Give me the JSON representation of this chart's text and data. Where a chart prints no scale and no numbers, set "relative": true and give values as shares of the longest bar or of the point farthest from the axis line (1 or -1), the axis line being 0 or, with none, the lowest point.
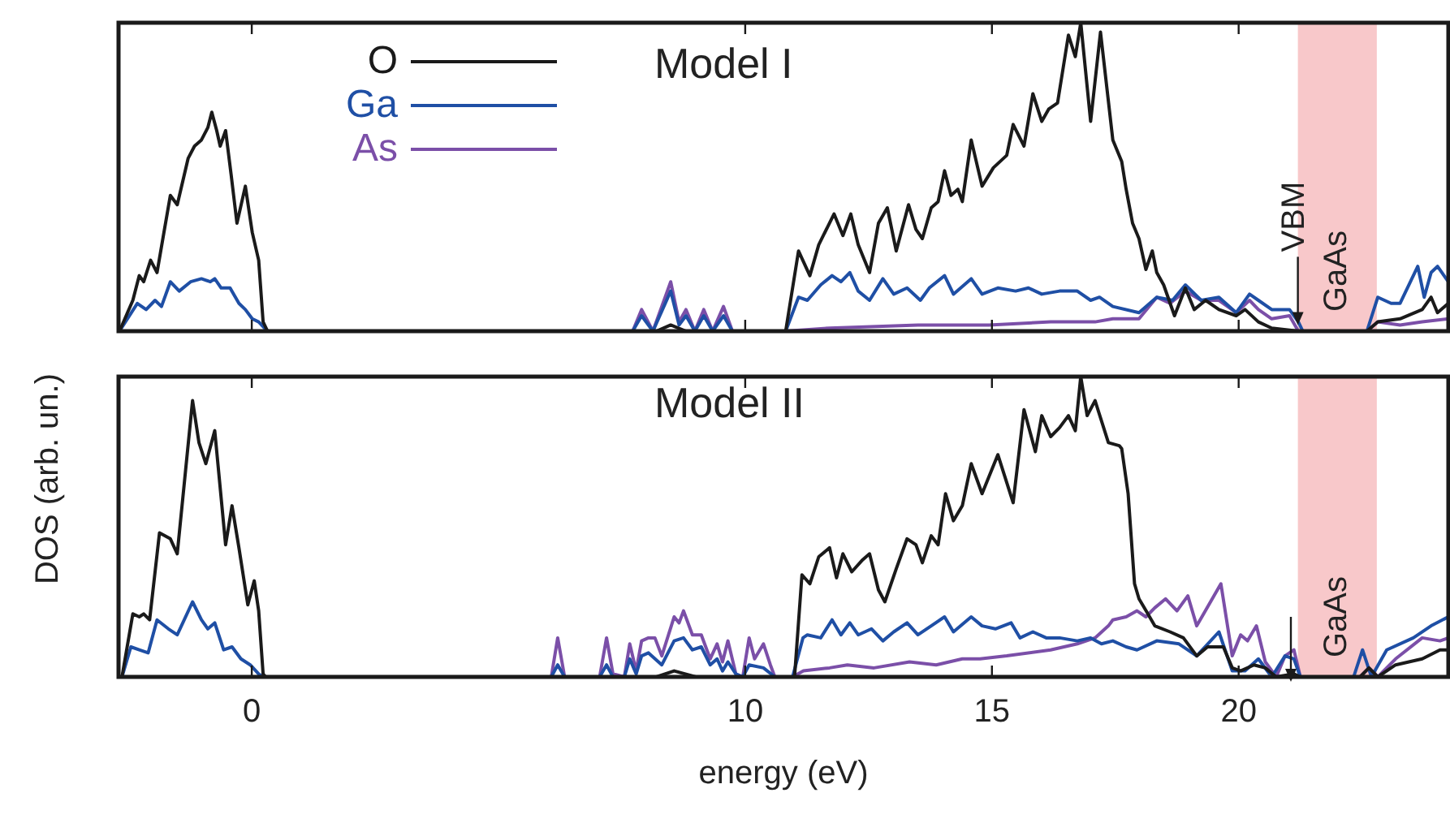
{
  "chart_data": [
    {
      "type": "line",
      "title": "Model I",
      "relative": true,
      "xlim": [
        -2.7,
        24.25
      ],
      "xticks": [
        0,
        10,
        15,
        20
      ],
      "tick_labels": false,
      "legend": "top left",
      "bands": [
        {
          "axis": "x",
          "from": 21.2,
          "to": 22.8,
          "label": "GaAs",
          "color": "#f8c8ca"
        }
      ],
      "annotations": [
        {
          "text": "VBM",
          "x": 21.2,
          "y": 0.02
        }
      ],
      "series": [
        {
          "name": "O",
          "color": "#1a1a1a",
          "x": [
            -2.68,
            -2.41,
            -2.28,
            -2.19,
            -2.05,
            -1.92,
            -1.78,
            -1.65,
            -1.51,
            -1.29,
            -1.16,
            -1.02,
            -0.89,
            -0.81,
            -0.71,
            -0.64,
            -0.53,
            -0.42,
            -0.3,
            -0.13,
            0.01,
            0.14,
            0.23,
            0.32,
            8.2,
            8.49,
            8.8,
            10.82,
            11.08,
            11.31,
            11.49,
            11.8,
            11.98,
            12.14,
            12.29,
            12.52,
            12.7,
            12.88,
            13.06,
            13.31,
            13.46,
            13.59,
            13.77,
            13.91,
            14.04,
            14.17,
            14.31,
            14.4,
            14.58,
            14.8,
            15.03,
            15.3,
            15.43,
            15.65,
            15.83,
            16.01,
            16.15,
            16.33,
            16.55,
            16.69,
            16.8,
            17,
            17.2,
            17.45,
            17.63,
            17.72,
            17.85,
            17.98,
            18.12,
            18.25,
            18.34,
            18.48,
            18.7,
            18.92,
            19.1,
            19.33,
            19.6,
            19.95,
            20.13,
            20.4,
            20.67,
            21.21,
            22.6,
            22.82,
            23.27,
            23.72,
            23.9,
            24.03,
            24.25
          ],
          "values": [
            0,
            0.1,
            0.18,
            0.16,
            0.23,
            0.19,
            0.32,
            0.44,
            0.41,
            0.56,
            0.6,
            0.62,
            0.66,
            0.71,
            0.65,
            0.6,
            0.65,
            0.51,
            0.35,
            0.47,
            0.32,
            0.23,
            0.03,
            0,
            0,
            0.02,
            0,
            0,
            0.26,
            0.18,
            0.28,
            0.38,
            0.31,
            0.38,
            0.28,
            0.19,
            0.35,
            0.4,
            0.26,
            0.41,
            0.33,
            0.3,
            0.4,
            0.42,
            0.52,
            0.44,
            0.46,
            0.42,
            0.62,
            0.47,
            0.53,
            0.57,
            0.67,
            0.6,
            0.77,
            0.68,
            0.72,
            0.74,
            0.96,
            0.89,
            1,
            0.68,
            0.97,
            0.62,
            0.55,
            0.46,
            0.35,
            0.3,
            0.2,
            0.26,
            0.19,
            0.15,
            0.05,
            0.14,
            0.07,
            0.1,
            0.07,
            0.05,
            0.07,
            0.03,
            0.01,
            0,
            0,
            0.03,
            0.04,
            0.07,
            0.11,
            0.06,
            0.09
          ]
        },
        {
          "name": "Ga",
          "color": "#1f4fa5",
          "x": [
            -2.68,
            -2.32,
            -2.14,
            -1.96,
            -1.83,
            -1.65,
            -1.47,
            -1.24,
            -1.02,
            -0.84,
            -0.75,
            -0.62,
            -0.44,
            -0.26,
            -0.13,
            0.01,
            0.14,
            0.32,
            7.72,
            7.9,
            8.13,
            8.49,
            8.66,
            8.8,
            8.98,
            9.16,
            9.34,
            9.56,
            9.74,
            10.82,
            11.08,
            11.26,
            11.53,
            11.76,
            11.94,
            12.12,
            12.29,
            12.52,
            12.79,
            13.01,
            13.28,
            13.55,
            13.73,
            14.04,
            14.22,
            14.58,
            14.8,
            15.12,
            15.48,
            15.74,
            16.01,
            16.37,
            16.73,
            17,
            17.18,
            17.45,
            17.98,
            18.34,
            18.66,
            18.92,
            19.24,
            19.6,
            19.95,
            20.22,
            20.4,
            20.67,
            21.03,
            21.21,
            21.3,
            22.6,
            22.82,
            23.09,
            23.27,
            23.63,
            23.76,
            23.9,
            24.03,
            24.25
          ],
          "values": [
            0,
            0.09,
            0.07,
            0.1,
            0.08,
            0.16,
            0.13,
            0.16,
            0.17,
            0.16,
            0.17,
            0.14,
            0.14,
            0.09,
            0.07,
            0.04,
            0.03,
            0,
            0,
            0.05,
            0,
            0.13,
            0.02,
            0.05,
            0,
            0.05,
            0,
            0.05,
            0,
            0,
            0.11,
            0.1,
            0.15,
            0.18,
            0.16,
            0.19,
            0.13,
            0.1,
            0.17,
            0.12,
            0.14,
            0.1,
            0.14,
            0.18,
            0.12,
            0.17,
            0.12,
            0.14,
            0.13,
            0.14,
            0.12,
            0.13,
            0.13,
            0.1,
            0.11,
            0.08,
            0.06,
            0.11,
            0.1,
            0.15,
            0.1,
            0.11,
            0.06,
            0.12,
            0.1,
            0.07,
            0.07,
            0.03,
            0,
            0,
            0.11,
            0.09,
            0.09,
            0.21,
            0.11,
            0.19,
            0.21,
            0.16
          ]
        },
        {
          "name": "As",
          "color": "#7b4fa8",
          "x": [
            -2.68,
            7.72,
            7.9,
            8.13,
            8.49,
            8.66,
            8.8,
            8.98,
            9.16,
            9.34,
            9.56,
            9.74,
            10.82,
            11.71,
            13.5,
            14.94,
            16.19,
            17.09,
            17.45,
            17.98,
            18.34,
            18.61,
            18.92,
            19.24,
            19.6,
            19.95,
            20.22,
            20.4,
            20.67,
            21.03,
            21.21,
            22.6,
            22.82,
            23.27,
            23.72,
            24.25
          ],
          "values": [
            0,
            0,
            0.07,
            0,
            0.16,
            0.03,
            0.07,
            0,
            0.07,
            0,
            0.08,
            0,
            0,
            0.01,
            0.02,
            0.02,
            0.03,
            0.03,
            0.04,
            0.04,
            0.11,
            0.09,
            0.13,
            0.1,
            0.1,
            0.06,
            0.1,
            0.07,
            0.04,
            0.05,
            0,
            0,
            0.03,
            0.02,
            0.03,
            0.04
          ]
        }
      ]
    },
    {
      "type": "line",
      "title": "Model II",
      "relative": true,
      "xlabel": "energy (eV)",
      "ylabel": "DOS (arb. un.)",
      "xlim": [
        -2.7,
        24.25
      ],
      "xticks": [
        0,
        10,
        15,
        20
      ],
      "tick_labels": "x",
      "bands": [
        {
          "axis": "x",
          "from": 21.2,
          "to": 22.8,
          "label": "GaAs",
          "color": "#f8c8ca"
        }
      ],
      "series": [
        {
          "color": "#1a1a1a",
          "x": [
            -2.63,
            -2.41,
            -2.28,
            -2.19,
            -2.07,
            -1.87,
            -1.65,
            -1.51,
            -1.34,
            -1.2,
            -1.07,
            -0.93,
            -0.75,
            -0.53,
            -0.4,
            -0.26,
            -0.08,
            0.05,
            0.14,
            0.23,
            0.28,
            8.2,
            8.56,
            9,
            11,
            11.15,
            11.31,
            11.49,
            11.71,
            11.85,
            11.98,
            12.16,
            12.38,
            12.52,
            12.7,
            12.83,
            13.06,
            13.28,
            13.46,
            13.59,
            13.77,
            13.91,
            14.06,
            14.22,
            14.4,
            14.58,
            14.8,
            15.12,
            15.43,
            15.65,
            15.88,
            16.01,
            16.19,
            16.37,
            16.55,
            16.69,
            16.8,
            16.93,
            17.09,
            17.36,
            17.58,
            17.63,
            17.76,
            17.89,
            17.98,
            18.16,
            18.3,
            18.61,
            18.88,
            19.15,
            19.37,
            19.69,
            19.87,
            20.04,
            20.31,
            20.54,
            20.76,
            21.12,
            21.25,
            22.46,
            22.64,
            22.82,
            23.18,
            23.72,
            24.08,
            24.25
          ],
          "values": [
            0,
            0.21,
            0.2,
            0.21,
            0.19,
            0.48,
            0.46,
            0.41,
            0.69,
            0.92,
            0.78,
            0.71,
            0.82,
            0.44,
            0.57,
            0.43,
            0.24,
            0.32,
            0.22,
            0.01,
            0,
            0,
            0.02,
            0,
            0,
            0.34,
            0.31,
            0.4,
            0.43,
            0.33,
            0.41,
            0.35,
            0.39,
            0.41,
            0.29,
            0.25,
            0.36,
            0.46,
            0.44,
            0.38,
            0.47,
            0.44,
            0.61,
            0.52,
            0.57,
            0.71,
            0.61,
            0.74,
            0.58,
            0.89,
            0.75,
            0.87,
            0.8,
            0.83,
            0.87,
            0.82,
            1,
            0.87,
            0.92,
            0.78,
            0.77,
            0.76,
            0.61,
            0.31,
            0.26,
            0.21,
            0.17,
            0.15,
            0.13,
            0.07,
            0.1,
            0.1,
            0.03,
            0.02,
            0.04,
            0.03,
            0,
            0.01,
            0,
            0,
            0.03,
            0,
            0.04,
            0.06,
            0.09,
            0.09
          ]
        },
        {
          "color": "#1f4fa5",
          "x": [
            -2.63,
            -2.45,
            -2.28,
            -2.1,
            -1.92,
            -1.69,
            -1.51,
            -1.2,
            -1.02,
            -0.89,
            -0.75,
            -0.57,
            -0.4,
            -0.22,
            -0.03,
            0.14,
            0.23,
            6.07,
            6.2,
            6.34,
            7.05,
            7.19,
            7.32,
            7.55,
            7.66,
            7.79,
            7.9,
            8.04,
            8.31,
            8.56,
            8.75,
            8.93,
            9.11,
            9.29,
            9.43,
            9.54,
            9.65,
            9.81,
            9.95,
            10.08,
            10.37,
            10.6,
            10.96,
            11.17,
            11.26,
            11.53,
            11.76,
            11.94,
            12.12,
            12.29,
            12.56,
            12.79,
            13.01,
            13.28,
            13.5,
            13.77,
            14.04,
            14.22,
            14.58,
            14.8,
            15.07,
            15.39,
            15.57,
            15.83,
            16.1,
            16.37,
            16.73,
            17,
            17.22,
            17.45,
            17.72,
            17.94,
            18.34,
            18.79,
            19.15,
            19.6,
            19.87,
            20.13,
            20.4,
            20.67,
            20.94,
            21.12,
            21.25,
            22.33,
            22.51,
            22.69,
            23,
            23.54,
            23.9,
            24.25
          ],
          "values": [
            0,
            0.1,
            0.09,
            0.08,
            0.19,
            0.16,
            0.14,
            0.25,
            0.19,
            0.16,
            0.18,
            0.09,
            0.1,
            0.06,
            0.04,
            0.01,
            0,
            0,
            0.04,
            0,
            0,
            0.04,
            0,
            0,
            0.06,
            0.01,
            0.07,
            0.08,
            0.04,
            0.12,
            0.13,
            0.09,
            0.1,
            0.04,
            0.06,
            0.02,
            0.05,
            0.01,
            0,
            0.04,
            0.03,
            0,
            0,
            0.13,
            0.14,
            0.13,
            0.19,
            0.14,
            0.18,
            0.14,
            0.16,
            0.12,
            0.15,
            0.18,
            0.14,
            0.17,
            0.2,
            0.15,
            0.2,
            0.17,
            0.16,
            0.18,
            0.13,
            0.15,
            0.13,
            0.13,
            0.12,
            0.13,
            0.11,
            0.12,
            0.1,
            0.09,
            0.12,
            0.11,
            0.07,
            0.15,
            0.02,
            0.02,
            0.06,
            0,
            0.07,
            0.06,
            0,
            0,
            0.09,
            0,
            0.09,
            0.13,
            0.17,
            0.2
          ]
        },
        {
          "color": "#7b4fa8",
          "x": [
            -2.63,
            6.07,
            6.2,
            6.34,
            7.05,
            7.19,
            7.32,
            7.55,
            7.66,
            7.79,
            7.9,
            8.04,
            8.17,
            8.31,
            8.56,
            8.66,
            8.75,
            8.93,
            9.11,
            9.29,
            9.43,
            9.54,
            9.65,
            9.81,
            9.95,
            10.08,
            10.19,
            10.37,
            10.51,
            10.6,
            10.96,
            11.18,
            11.71,
            12.07,
            12.61,
            13.33,
            13.87,
            14.4,
            14.76,
            15.3,
            16.19,
            16.73,
            17.09,
            17.36,
            17.45,
            17.72,
            17.94,
            18.12,
            18.3,
            18.52,
            18.75,
            18.97,
            19.15,
            19.64,
            19.87,
            20.04,
            20.18,
            20.36,
            20.54,
            20.76,
            20.94,
            21.12,
            21.25,
            22.46,
            22.64,
            22.82,
            23.18,
            23.72,
            24.08,
            24.25
          ],
          "values": [
            0,
            0,
            0.13,
            0,
            0,
            0.13,
            0.01,
            0,
            0.11,
            0.02,
            0.12,
            0.13,
            0.13,
            0.07,
            0.2,
            0.18,
            0.22,
            0.14,
            0.14,
            0.06,
            0.11,
            0.05,
            0.12,
            0.01,
            0,
            0.13,
            0.06,
            0.11,
            0.04,
            0,
            0,
            0.02,
            0.03,
            0.04,
            0.03,
            0.05,
            0.04,
            0.06,
            0.06,
            0.07,
            0.09,
            0.11,
            0.13,
            0.17,
            0.19,
            0.2,
            0.22,
            0.2,
            0.23,
            0.26,
            0.22,
            0.27,
            0.17,
            0.31,
            0.07,
            0.14,
            0.12,
            0.17,
            0.05,
            0,
            0.07,
            0.09,
            0,
            0,
            0.03,
            0,
            0.06,
            0.13,
            0.12,
            0.13
          ]
        }
      ]
    }
  ]
}
